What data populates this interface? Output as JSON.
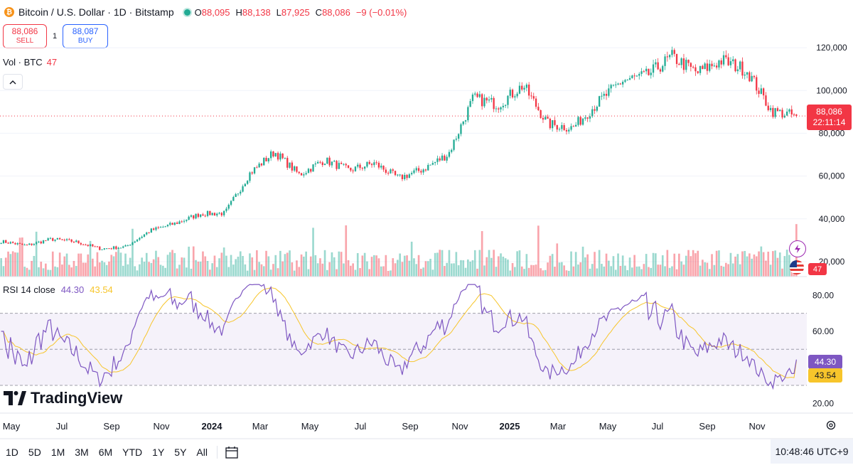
{
  "header": {
    "btc_symbol": "₿",
    "title": "Bitcoin / U.S. Dollar · 1D · Bitstamp",
    "ohlc": {
      "o_label": "O",
      "o": "88,095",
      "h_label": "H",
      "h": "88,138",
      "l_label": "L",
      "l": "87,925",
      "c_label": "C",
      "c": "88,086",
      "change": "−9 (−0.01%)"
    }
  },
  "trade": {
    "sell_price": "88,086",
    "sell_label": "SELL",
    "spread": "1",
    "buy_price": "88,087",
    "buy_label": "BUY"
  },
  "volume_legend": {
    "label": "Vol · BTC",
    "value": "47"
  },
  "rsi_legend": {
    "label": "RSI 14 close",
    "rsi": "44.30",
    "ma": "43.54"
  },
  "price_tag": {
    "price": "88,086",
    "countdown": "22:11:14"
  },
  "volume_tag": "47",
  "rsi_tags": {
    "rsi": "44.30",
    "ma": "43.54"
  },
  "logo": "TradingView",
  "ranges": [
    "1D",
    "5D",
    "1M",
    "3M",
    "6M",
    "YTD",
    "1Y",
    "5Y",
    "All"
  ],
  "clock": "10:48:46 UTC+9",
  "colors": {
    "up": "#22ab94",
    "down": "#f23645",
    "rsi": "#7e57c2",
    "rsi_ma": "#f7c52b",
    "band": "#7e57c2"
  },
  "chart_data": [
    {
      "type": "candlestick",
      "title": "Bitcoin / U.S. Dollar · 1D · Bitstamp",
      "x_tick_labels": [
        "May",
        "Jul",
        "Sep",
        "Nov",
        "2024",
        "Mar",
        "May",
        "Jul",
        "Sep",
        "Nov",
        "2025",
        "Mar",
        "May",
        "Jul",
        "Sep",
        "Nov"
      ],
      "y_tick_labels": [
        "120,000",
        "100,000",
        "80,000",
        "60,000",
        "40,000",
        "20,000"
      ],
      "ylim": [
        13000,
        129000
      ],
      "last_price": 88086,
      "price_path_monthly": {
        "months": [
          "2023-04",
          "2023-05",
          "2023-06",
          "2023-07",
          "2023-08",
          "2023-09",
          "2023-10",
          "2023-11",
          "2023-12",
          "2024-01",
          "2024-02",
          "2024-03",
          "2024-04",
          "2024-05",
          "2024-06",
          "2024-07",
          "2024-08",
          "2024-09",
          "2024-10",
          "2024-11",
          "2024-12",
          "2025-01",
          "2025-02",
          "2025-03",
          "2025-04",
          "2025-05",
          "2025-06",
          "2025-07",
          "2025-08",
          "2025-09",
          "2025-10",
          "2025-11",
          "2025-12"
        ],
        "close": [
          29500,
          27500,
          30500,
          29300,
          26000,
          26900,
          34500,
          37800,
          42300,
          42600,
          61200,
          71300,
          60600,
          67500,
          62700,
          66000,
          59000,
          63300,
          70300,
          96400,
          93400,
          102400,
          84300,
          82500,
          94200,
          104600,
          107100,
          115800,
          108300,
          114100,
          109500,
          90400,
          88086
        ]
      }
    },
    {
      "type": "bar",
      "title": "Vol · BTC",
      "last_value": 47
    },
    {
      "type": "line",
      "title": "RSI 14 close",
      "y_tick_labels": [
        "80.00",
        "60.00",
        "20.00"
      ],
      "ylim": [
        15,
        88
      ],
      "bands": {
        "upper": 70,
        "middle": 50,
        "lower": 30
      },
      "last_rsi": 44.3,
      "last_ma": 43.54
    }
  ]
}
